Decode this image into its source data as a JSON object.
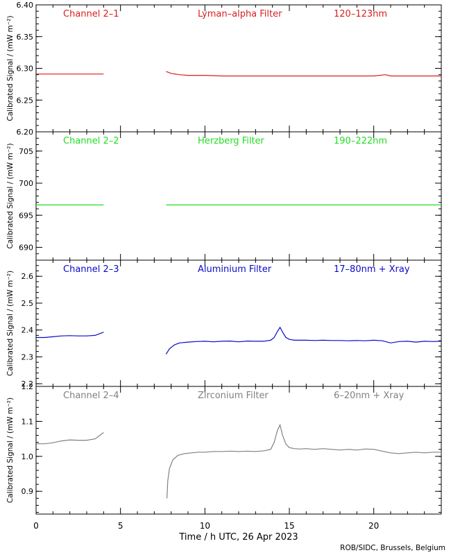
{
  "x_axis": {
    "label": "Time / h UTC, 26 Apr 2023",
    "range": [
      0,
      24
    ],
    "major_ticks": [
      0,
      5,
      10,
      15,
      20
    ],
    "minor_step": 1
  },
  "credit": "ROB/SIDC, Brussels, Belgium",
  "chart_data": [
    {
      "type": "line",
      "channel": "Channel 2–1",
      "filter": "Lyman–alpha Filter",
      "band": "120–123nm",
      "color": "#d81e1e",
      "ylabel": "Calibrated Signal / (mW m⁻²)",
      "ylim": [
        6.2,
        6.4
      ],
      "yticks": [
        6.2,
        6.25,
        6.3,
        6.35,
        6.4
      ],
      "ytick_labels": [
        "6.20",
        "6.25",
        "6.30",
        "6.35",
        "6.40"
      ],
      "ytick_minor": 0.01,
      "x": [
        0,
        1,
        2,
        3,
        4,
        null,
        7.7,
        8.0,
        8.5,
        9.0,
        10,
        11,
        12,
        13,
        14,
        15,
        16,
        17,
        18,
        19,
        20,
        20.7,
        21,
        22,
        23,
        24
      ],
      "y": [
        6.291,
        6.291,
        6.291,
        6.291,
        6.291,
        null,
        6.295,
        6.292,
        6.29,
        6.289,
        6.289,
        6.288,
        6.288,
        6.288,
        6.288,
        6.288,
        6.288,
        6.288,
        6.288,
        6.288,
        6.288,
        6.29,
        6.288,
        6.288,
        6.288,
        6.288
      ]
    },
    {
      "type": "line",
      "channel": "Channel 2–2",
      "filter": "Herzberg Filter",
      "band": "190–222nm",
      "color": "#22dd22",
      "ylabel": "Calibrated Signal / (mW m⁻²)",
      "ylim": [
        688,
        708
      ],
      "yticks": [
        690,
        695,
        700,
        705
      ],
      "ytick_labels": [
        "690",
        "695",
        "700",
        "705"
      ],
      "ytick_minor": 1,
      "x": [
        0,
        1,
        2,
        3,
        4,
        null,
        7.7,
        8.5,
        10,
        12,
        14,
        16,
        18,
        20,
        22,
        24
      ],
      "y": [
        696.6,
        696.6,
        696.6,
        696.6,
        696.6,
        null,
        696.6,
        696.6,
        696.6,
        696.6,
        696.6,
        696.6,
        696.6,
        696.6,
        696.6,
        696.6
      ]
    },
    {
      "type": "line",
      "channel": "Channel 2–3",
      "filter": "Aluminium Filter",
      "band": "17–80nm + Xray",
      "color": "#0a0ac8",
      "ylabel": "Calibrated Signal / (mW m⁻²)",
      "ylim": [
        2.19,
        2.66
      ],
      "yticks": [
        2.2,
        2.3,
        2.4,
        2.5,
        2.6
      ],
      "ytick_labels": [
        "2.2",
        "2.3",
        "2.4",
        "2.5",
        "2.6"
      ],
      "ytick_minor": 0.02,
      "x": [
        0,
        0.5,
        1,
        1.5,
        2,
        2.5,
        3,
        3.5,
        4,
        null,
        7.7,
        7.9,
        8.2,
        8.5,
        9,
        9.5,
        10,
        10.5,
        11,
        11.5,
        12,
        12.5,
        13,
        13.5,
        13.9,
        14.1,
        14.3,
        14.45,
        14.6,
        14.8,
        15.0,
        15.3,
        15.6,
        16,
        16.5,
        17,
        17.5,
        18,
        18.5,
        19,
        19.5,
        20,
        20.5,
        21,
        21.5,
        22,
        22.5,
        23,
        23.5,
        24
      ],
      "y": [
        2.372,
        2.372,
        2.375,
        2.378,
        2.379,
        2.378,
        2.378,
        2.38,
        2.392,
        null,
        2.31,
        2.33,
        2.345,
        2.352,
        2.355,
        2.357,
        2.358,
        2.356,
        2.358,
        2.359,
        2.356,
        2.359,
        2.358,
        2.358,
        2.362,
        2.372,
        2.395,
        2.41,
        2.392,
        2.372,
        2.365,
        2.362,
        2.362,
        2.362,
        2.361,
        2.362,
        2.361,
        2.361,
        2.36,
        2.361,
        2.36,
        2.362,
        2.36,
        2.352,
        2.357,
        2.358,
        2.355,
        2.358,
        2.357,
        2.358
      ]
    },
    {
      "type": "line",
      "channel": "Channel 2–4",
      "filter": "Zirconium Filter",
      "band": "6–20nm + Xray",
      "color": "#808080",
      "ylabel": "Calibrated Signal / (mW m⁻²)",
      "ylim": [
        0.835,
        1.2
      ],
      "yticks": [
        0.9,
        1.0,
        1.1,
        1.2
      ],
      "ytick_labels": [
        "0.9",
        "1.0",
        "1.1",
        "1.2"
      ],
      "ytick_minor": 0.02,
      "x": [
        0,
        0.5,
        1,
        1.5,
        2,
        2.5,
        3,
        3.5,
        4,
        null,
        7.75,
        7.8,
        7.9,
        8.1,
        8.4,
        8.8,
        9.2,
        9.6,
        10,
        10.5,
        11,
        11.5,
        12,
        12.5,
        13,
        13.5,
        13.9,
        14.1,
        14.3,
        14.45,
        14.6,
        14.8,
        15.0,
        15.3,
        15.6,
        16,
        16.5,
        17,
        17.5,
        18,
        18.5,
        19,
        19.5,
        20,
        20.5,
        21,
        21.5,
        22,
        22.5,
        23,
        23.5,
        24
      ],
      "y": [
        1.036,
        1.036,
        1.039,
        1.044,
        1.047,
        1.046,
        1.046,
        1.05,
        1.068,
        null,
        0.88,
        0.93,
        0.965,
        0.99,
        1.003,
        1.008,
        1.01,
        1.012,
        1.012,
        1.014,
        1.014,
        1.015,
        1.014,
        1.015,
        1.014,
        1.016,
        1.02,
        1.04,
        1.075,
        1.09,
        1.06,
        1.035,
        1.025,
        1.022,
        1.021,
        1.022,
        1.02,
        1.022,
        1.02,
        1.018,
        1.02,
        1.018,
        1.021,
        1.02,
        1.015,
        1.01,
        1.008,
        1.01,
        1.012,
        1.01,
        1.012,
        1.012
      ]
    }
  ]
}
